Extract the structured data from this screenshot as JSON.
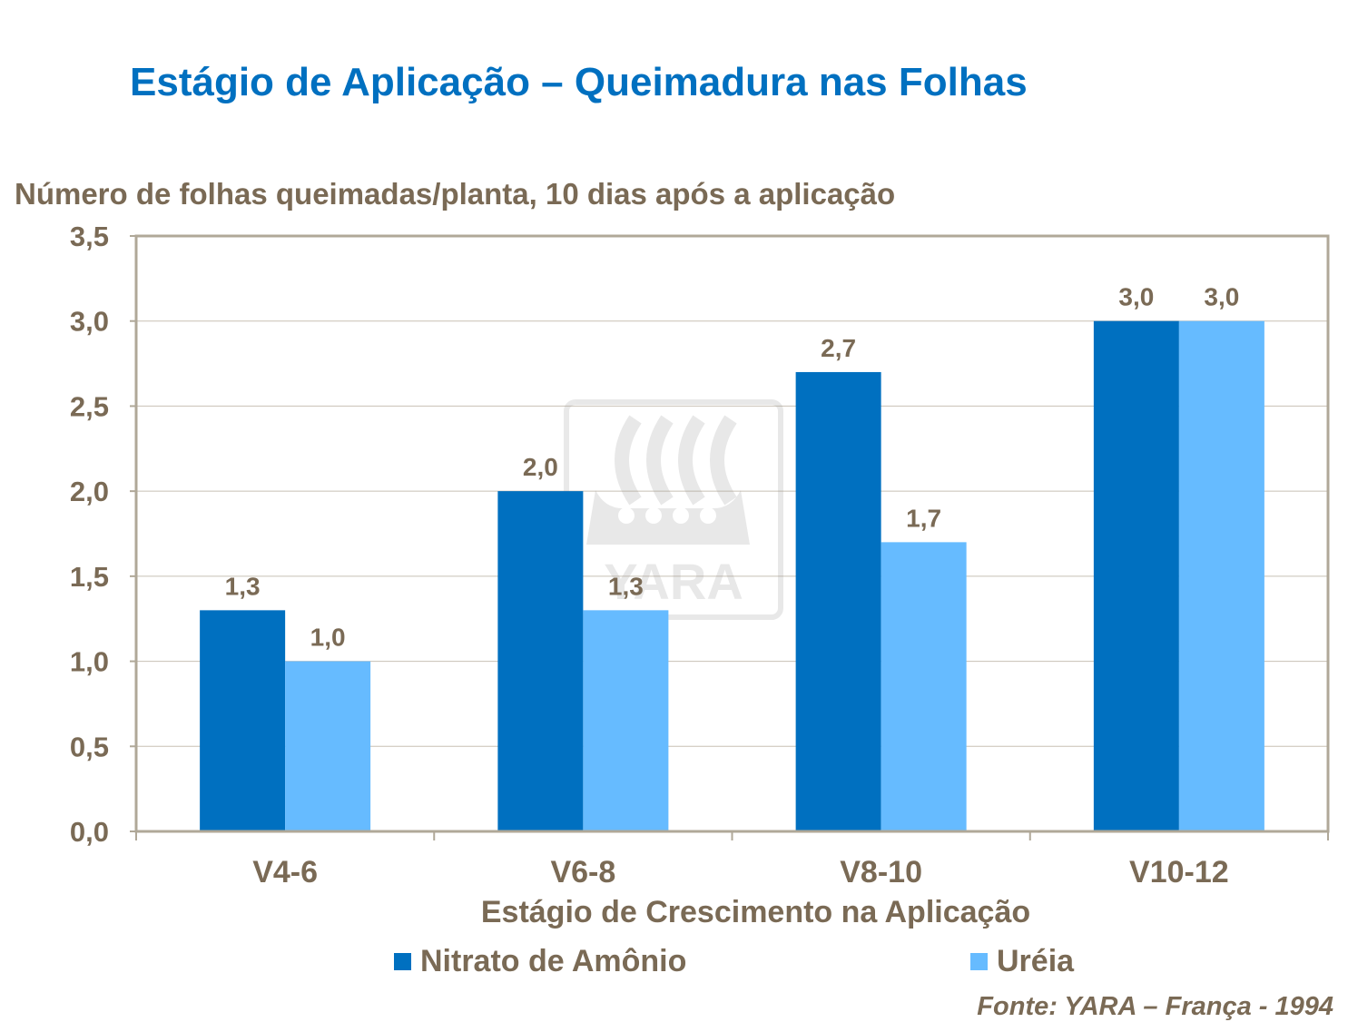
{
  "chart_data": {
    "type": "bar",
    "title": "Estágio de Aplicação – Queimadura nas Folhas",
    "ylabel": "Número de folhas queimadas/planta, 10 dias após a aplicação",
    "xlabel": "Estágio de Crescimento na Aplicação",
    "categories": [
      "V4-6",
      "V6-8",
      "V8-10",
      "V10-12"
    ],
    "series": [
      {
        "name": "Nitrato de Amônio",
        "color": "#0070C0",
        "values": [
          1.3,
          2.0,
          2.7,
          3.0
        ],
        "labels": [
          "1,3",
          "2,0",
          "2,7",
          "3,0"
        ]
      },
      {
        "name": "Uréia",
        "color": "#66BBFF",
        "values": [
          1.0,
          1.3,
          1.7,
          3.0
        ],
        "labels": [
          "1,0",
          "1,3",
          "1,7",
          "3,0"
        ]
      }
    ],
    "ylim": [
      0,
      3.5
    ],
    "yticks": [
      0,
      0.5,
      1.0,
      1.5,
      2.0,
      2.5,
      3.0,
      3.5
    ],
    "ytick_labels": [
      "0,0",
      "0,5",
      "1,0",
      "1,5",
      "2,0",
      "2,5",
      "3,0",
      "3,5"
    ],
    "grid": true,
    "legend_position": "bottom",
    "source": "Fonte: YARA – França - 1994",
    "watermark": "YARA"
  }
}
